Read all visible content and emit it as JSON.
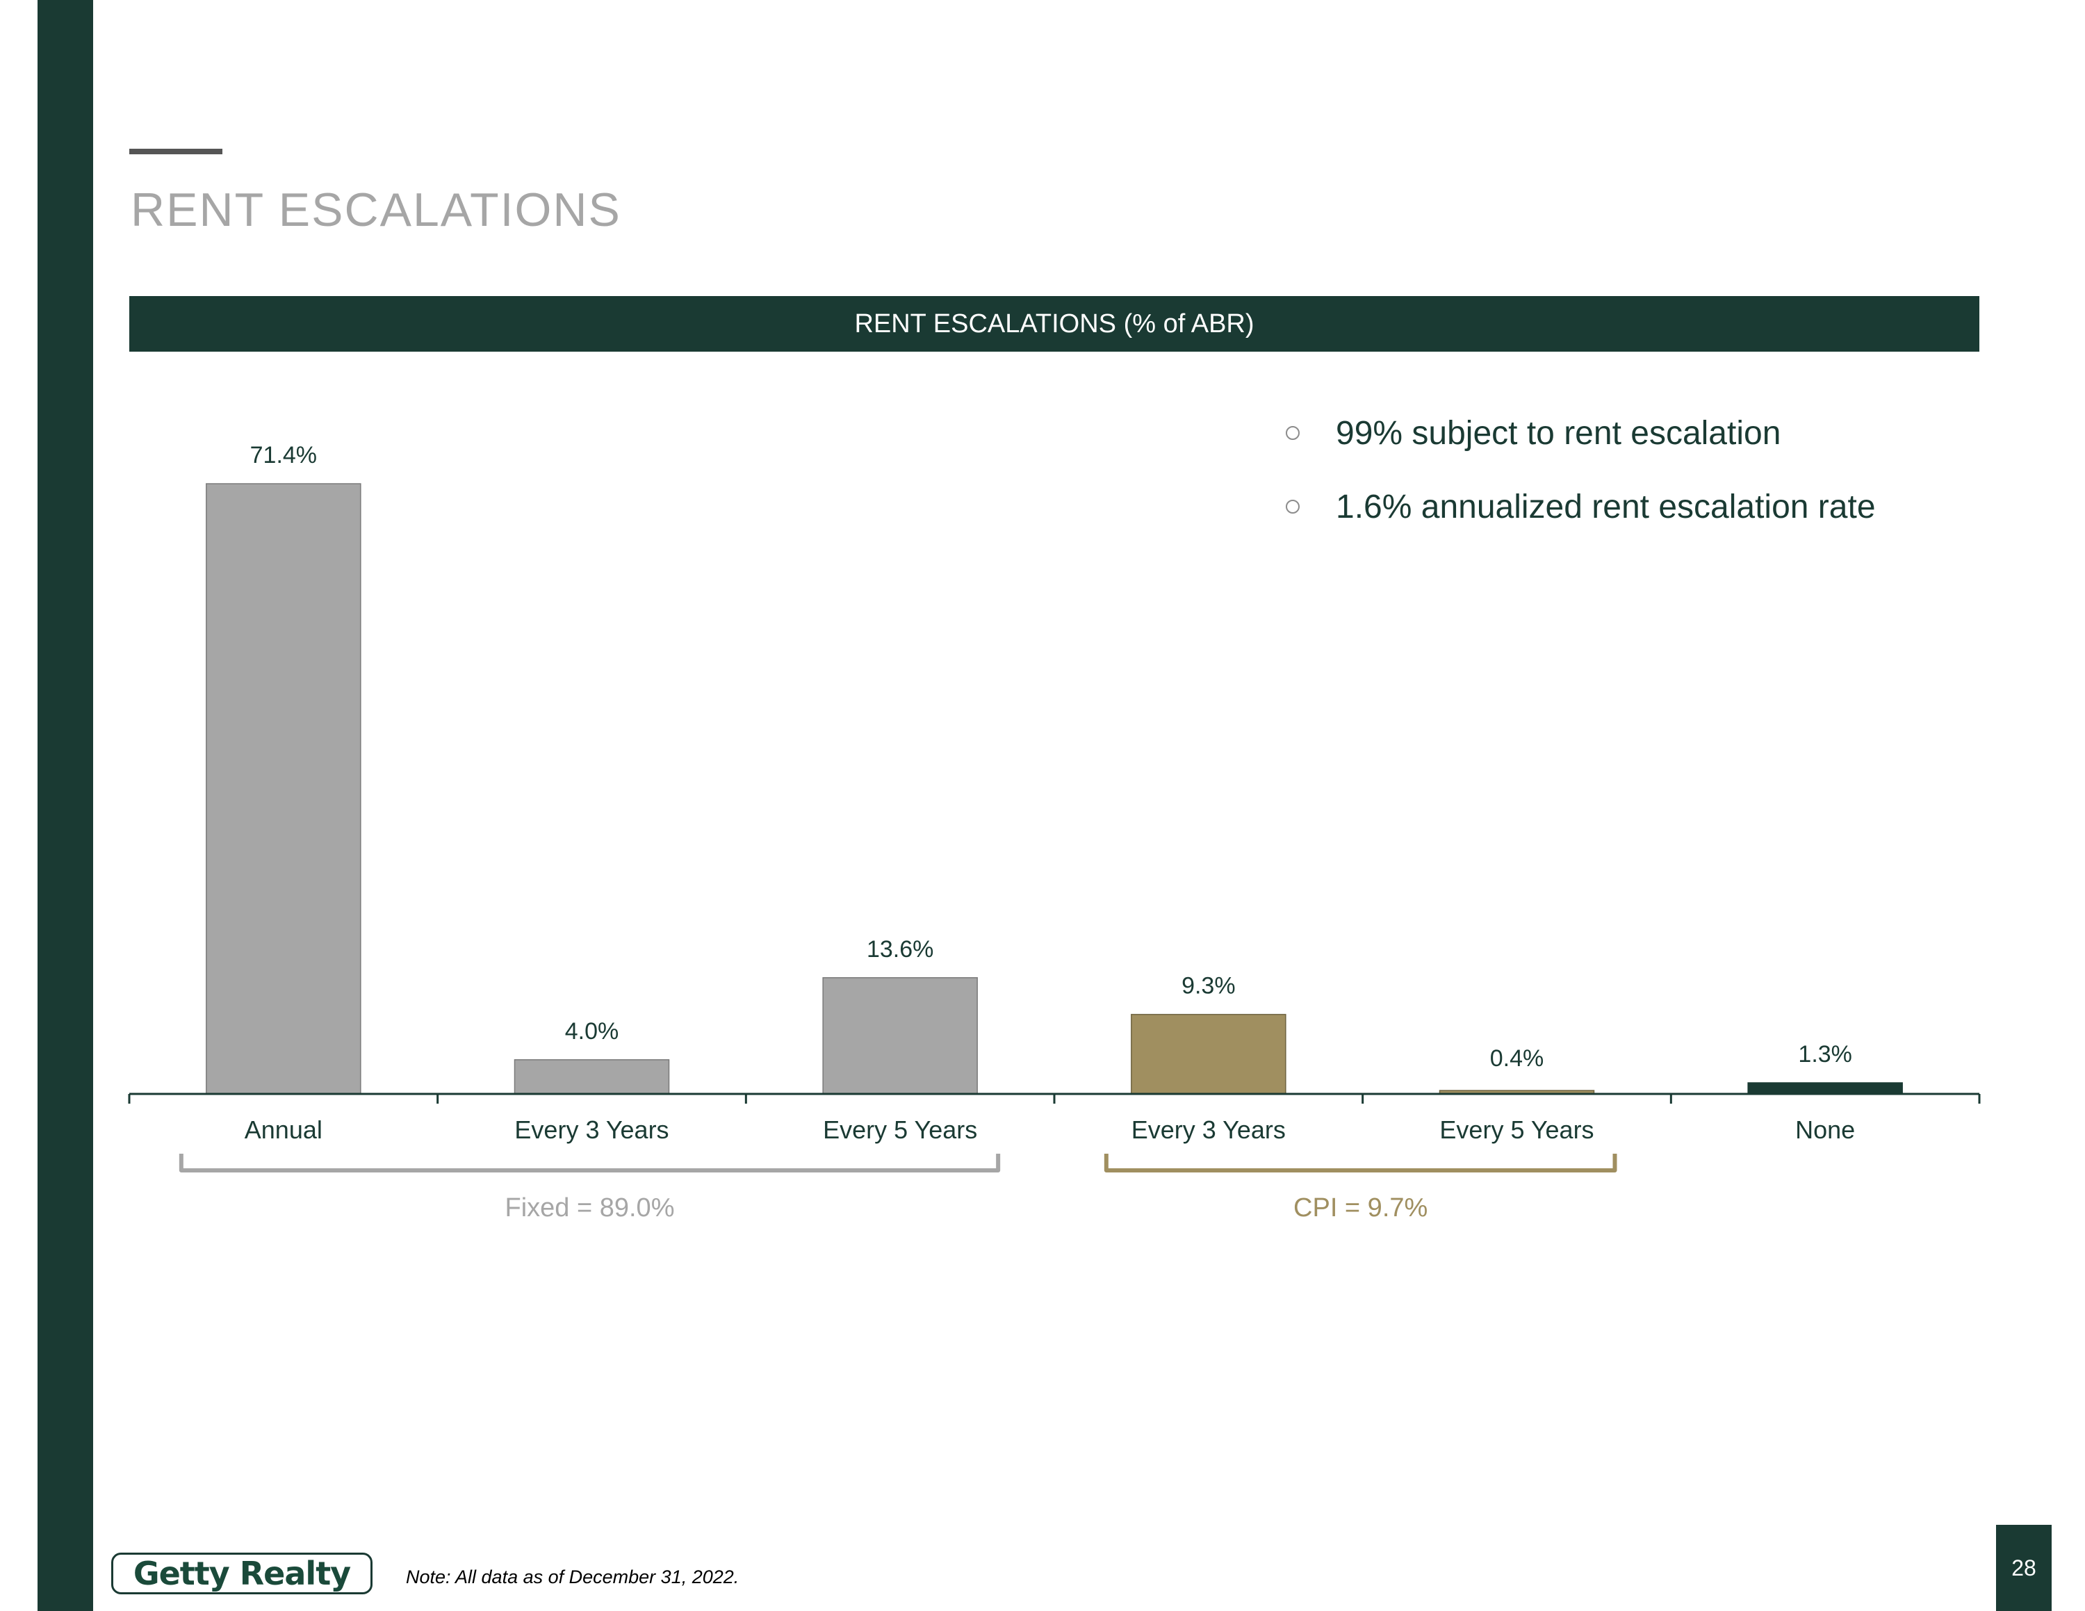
{
  "page": {
    "title": "RENT ESCALATIONS",
    "note": "Note: All data as of December 31, 2022.",
    "page_number": "28",
    "logo_text": "Getty Realty"
  },
  "colors": {
    "dark_green": "#1a3a33",
    "gray_bar": "#a6a6a6",
    "cpi_bar": "#a08f60",
    "title_gray": "#a6a6a6"
  },
  "bullets": [
    {
      "text": "99% subject to rent escalation",
      "icon": "circle-bullet-icon"
    },
    {
      "text": "1.6% annualized rent escalation rate",
      "icon": "circle-bullet-icon"
    }
  ],
  "chart_data": {
    "type": "bar",
    "title": "RENT ESCALATIONS (% of ABR)",
    "xlabel": "",
    "ylabel": "",
    "ylim": [
      0,
      75
    ],
    "grid": false,
    "categories": [
      "Annual",
      "Every 3 Years",
      "Every 5 Years",
      "Every 3 Years",
      "Every 5 Years",
      "None"
    ],
    "values": [
      71.4,
      4.0,
      13.6,
      9.3,
      0.4,
      1.3
    ],
    "value_labels": [
      "71.4%",
      "4.0%",
      "13.6%",
      "9.3%",
      "0.4%",
      "1.3%"
    ],
    "bar_groups": [
      "fixed",
      "fixed",
      "fixed",
      "cpi",
      "cpi",
      "none"
    ],
    "group_colors": {
      "fixed": "#a6a6a6",
      "cpi": "#a08f60",
      "none": "#1a3a33"
    },
    "brackets": [
      {
        "label": "Fixed = 89.0%",
        "from_category": 0,
        "to_category": 2,
        "color": "#a6a6a6"
      },
      {
        "label": "CPI = 9.7%",
        "from_category": 3,
        "to_category": 4,
        "color": "#a08f60"
      }
    ]
  }
}
